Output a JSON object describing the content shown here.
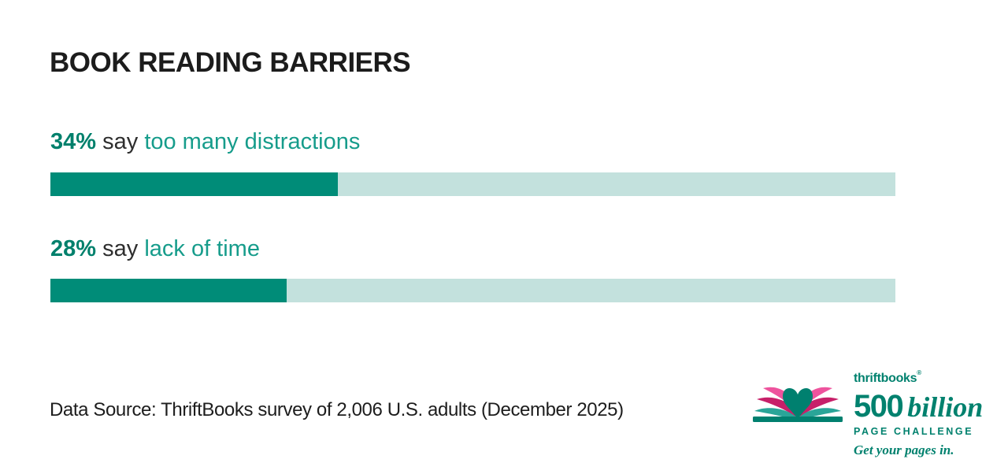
{
  "title": "BOOK READING BARRIERS",
  "rows": [
    {
      "pct": "34%",
      "connector": "say",
      "label": "too many distractions",
      "value": 34
    },
    {
      "pct": "28%",
      "connector": "say",
      "label": "lack of time",
      "value": 28
    }
  ],
  "source": "Data Source: ThriftBooks survey of 2,006 U.S. adults (December 2025)",
  "logo": {
    "brand_thrift": "thrift",
    "brand_books": "books",
    "brand_mark": "®",
    "number": "500",
    "number_word": "billion",
    "subtitle": "PAGE CHALLENGE",
    "tagline": "Get your pages in."
  },
  "colors": {
    "title_text": "#1c1c1c",
    "pct_teal": "#00806c",
    "label_teal": "#169c8b",
    "body_text": "#2e2e2e",
    "bar_fill": "#008c78",
    "bar_track": "#c3e1dd",
    "logo_teal": "#00816e",
    "logo_pink": "#ee539d",
    "logo_magenta": "#c72069",
    "logo_leaf_teal": "#2aa598"
  },
  "chart_data": {
    "type": "bar",
    "orientation": "horizontal",
    "title": "BOOK READING BARRIERS",
    "categories": [
      "too many distractions",
      "lack of time"
    ],
    "values": [
      34,
      28
    ],
    "unit": "%",
    "xlim": [
      0,
      100
    ],
    "grid": false,
    "legend": false,
    "annotations": [
      "34% say too many distractions",
      "28% say lack of time"
    ],
    "source": "Data Source: ThriftBooks survey of 2,006 U.S. adults (December 2025)"
  }
}
